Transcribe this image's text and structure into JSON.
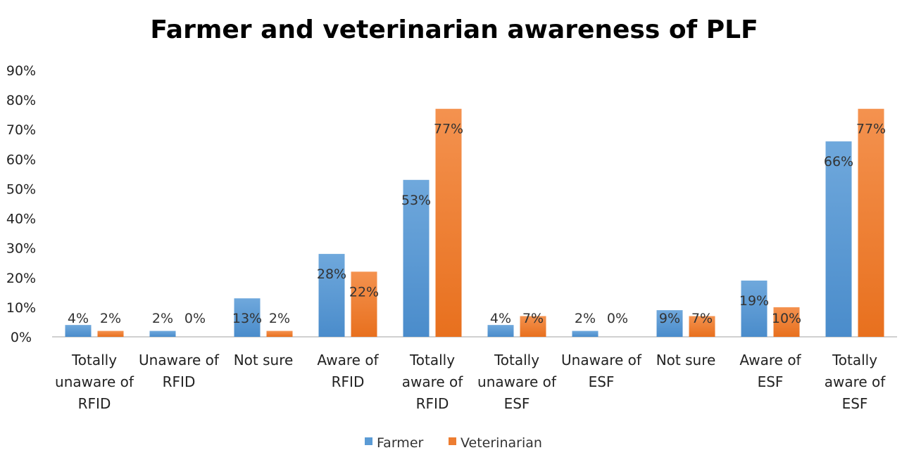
{
  "chart_data": {
    "type": "bar",
    "title": "Farmer and veterinarian awareness of PLF",
    "xlabel": "",
    "ylabel": "",
    "ylim": [
      0,
      90
    ],
    "yticks": [
      "0%",
      "10%",
      "20%",
      "30%",
      "40%",
      "50%",
      "60%",
      "70%",
      "80%",
      "90%"
    ],
    "grid": false,
    "legend": "bottom",
    "categories": [
      [
        "Totally",
        "unaware of",
        "RFID"
      ],
      [
        "Unaware of",
        "RFID"
      ],
      [
        "Not sure"
      ],
      [
        "Aware of",
        "RFID"
      ],
      [
        "Totally",
        "aware of",
        "RFID"
      ],
      [
        "Totally",
        "unaware of",
        "ESF"
      ],
      [
        "Unaware of",
        "ESF"
      ],
      [
        "Not sure"
      ],
      [
        "Aware of",
        "ESF"
      ],
      [
        "Totally",
        "aware of",
        "ESF"
      ]
    ],
    "series": [
      {
        "name": "Farmer",
        "color": "#5B9BD5",
        "values": [
          4,
          2,
          13,
          28,
          53,
          4,
          2,
          9,
          19,
          66
        ]
      },
      {
        "name": "Veterinarian",
        "color": "#ED7D31",
        "values": [
          2,
          0,
          2,
          22,
          77,
          7,
          0,
          7,
          10,
          77
        ]
      }
    ],
    "value_suffix": "%"
  }
}
